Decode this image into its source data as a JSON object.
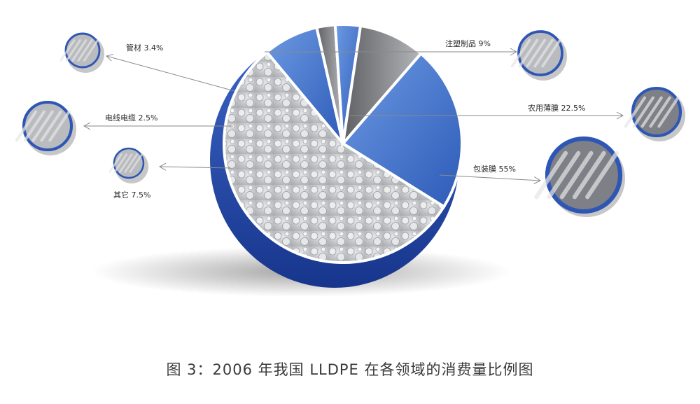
{
  "chart_data": {
    "type": "pie",
    "title": "图 3：2006 年我国 LLDPE 在各领域的消费量比例图",
    "slices": [
      {
        "name": "包装膜",
        "value": 55,
        "label": "包装膜 55%",
        "color": "#c9cbce"
      },
      {
        "name": "其它",
        "value": 7.5,
        "label": "其它 7.5%",
        "color": "#4f7fd0"
      },
      {
        "name": "电线电缆",
        "value": 2.5,
        "label": "电线电缆 2.5%",
        "color": "#8d8f92"
      },
      {
        "name": "管材",
        "value": 3.4,
        "label": "管材 3.4%",
        "color": "#4a78c8"
      },
      {
        "name": "注塑制品",
        "value": 9,
        "label": "注塑制品 9%",
        "color": "#7a7c80"
      },
      {
        "name": "农用薄膜",
        "value": 22.5,
        "label": "农用薄膜 22.5%",
        "color": "#3f6fc4"
      }
    ],
    "rim_color": "#2348a8"
  }
}
